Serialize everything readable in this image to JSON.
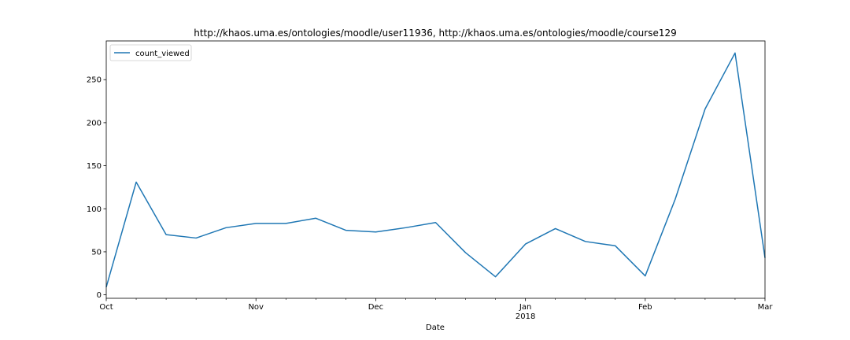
{
  "chart_data": {
    "type": "line",
    "title": "http://khaos.uma.es/ontologies/moodle/user11936, http://khaos.uma.es/ontologies/moodle/course129",
    "xlabel": "Date",
    "ylabel": "",
    "x": [
      "2017-10-01",
      "2017-10-08",
      "2017-10-15",
      "2017-10-22",
      "2017-10-29",
      "2017-11-05",
      "2017-11-12",
      "2017-11-19",
      "2017-11-26",
      "2017-12-03",
      "2017-12-10",
      "2017-12-17",
      "2017-12-24",
      "2017-12-31",
      "2018-01-07",
      "2018-01-14",
      "2018-01-21",
      "2018-01-28",
      "2018-02-04",
      "2018-02-11",
      "2018-02-18",
      "2018-02-25",
      "2018-03-04"
    ],
    "series": [
      {
        "name": "count_viewed",
        "color": "#1f77b4",
        "values": [
          9,
          131,
          70,
          66,
          78,
          83,
          83,
          89,
          75,
          73,
          78,
          84,
          49,
          21,
          59,
          77,
          62,
          57,
          22,
          111,
          216,
          281,
          43
        ]
      }
    ],
    "xlim": [
      "2017-10-01",
      "2018-03-04"
    ],
    "ylim": [
      -4,
      295
    ],
    "yticks": [
      0,
      50,
      100,
      150,
      200,
      250
    ],
    "xticks": [
      {
        "date": "2017-10-01",
        "label": "Oct",
        "sublabel": ""
      },
      {
        "date": "2017-11-05",
        "label": "Nov",
        "sublabel": ""
      },
      {
        "date": "2017-12-03",
        "label": "Dec",
        "sublabel": ""
      },
      {
        "date": "2018-01-07",
        "label": "Jan",
        "sublabel": "2018"
      },
      {
        "date": "2018-02-04",
        "label": "Feb",
        "sublabel": ""
      },
      {
        "date": "2018-03-04",
        "label": "Mar",
        "sublabel": ""
      }
    ],
    "grid": false,
    "legend": "top-left"
  }
}
